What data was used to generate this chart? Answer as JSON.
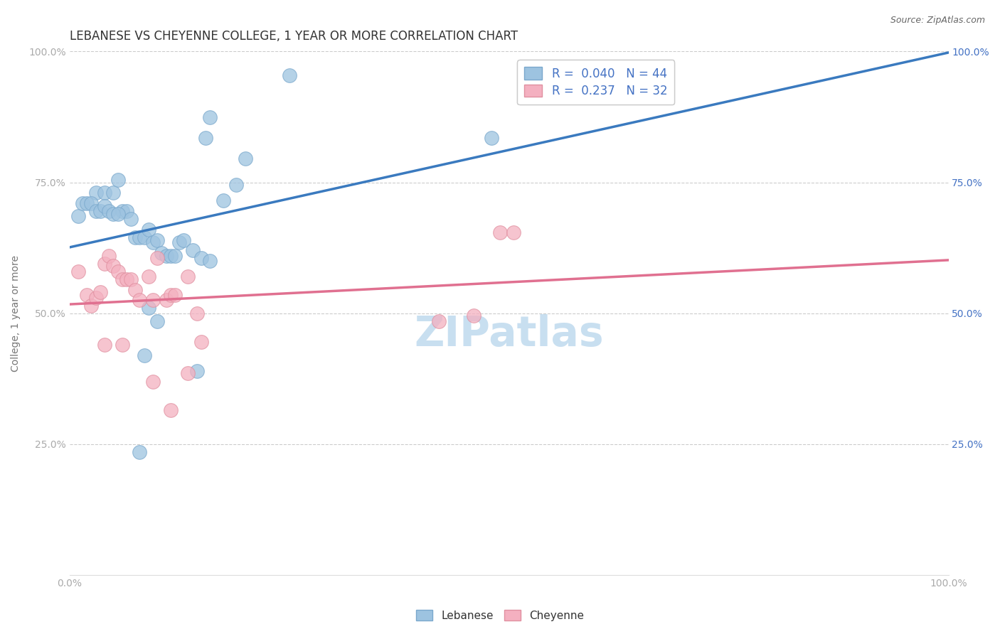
{
  "title": "LEBANESE VS CHEYENNE COLLEGE, 1 YEAR OR MORE CORRELATION CHART",
  "source_text": "Source: ZipAtlas.com",
  "ylabel": "College, 1 year or more",
  "xlim": [
    0.0,
    1.0
  ],
  "ylim": [
    0.0,
    1.0
  ],
  "ytick_positions": [
    0.25,
    0.5,
    0.75,
    1.0
  ],
  "ytick_labels": [
    "25.0%",
    "50.0%",
    "75.0%",
    "100.0%"
  ],
  "right_ytick_color": "#4472c4",
  "left_ytick_color": "#aaaaaa",
  "xtick_color": "#aaaaaa",
  "watermark": "ZIPatlas",
  "watermark_color": "#c8dff0",
  "background_color": "#ffffff",
  "grid_color": "#cccccc",
  "blue_line_color": "#3a7abf",
  "pink_line_color": "#e07090",
  "blue_scatter_color": "#9dc3e0",
  "pink_scatter_color": "#f4b0c0",
  "blue_scatter_edge": "#7aa8cc",
  "pink_scatter_edge": "#e090a0",
  "legend_r1": "R =  0.040   N = 44",
  "legend_r2": "R =  0.237   N = 32",
  "legend_label1": "Lebanese",
  "legend_label2": "Cheyenne",
  "title_fontsize": 12,
  "axis_label_fontsize": 10,
  "tick_fontsize": 10,
  "legend_fontsize": 12,
  "watermark_fontsize": 42,
  "blue_points_x": [
    0.25,
    0.03,
    0.04,
    0.05,
    0.055,
    0.06,
    0.065,
    0.07,
    0.075,
    0.08,
    0.085,
    0.09,
    0.095,
    0.1,
    0.105,
    0.11,
    0.115,
    0.12,
    0.125,
    0.13,
    0.14,
    0.15,
    0.16,
    0.01,
    0.015,
    0.02,
    0.025,
    0.03,
    0.035,
    0.04,
    0.045,
    0.05,
    0.055,
    0.09,
    0.1,
    0.19,
    0.2,
    0.175,
    0.16,
    0.155,
    0.48,
    0.085,
    0.08,
    0.145
  ],
  "blue_points_y": [
    0.955,
    0.73,
    0.73,
    0.73,
    0.755,
    0.695,
    0.695,
    0.68,
    0.645,
    0.645,
    0.645,
    0.66,
    0.635,
    0.64,
    0.615,
    0.61,
    0.61,
    0.61,
    0.635,
    0.64,
    0.62,
    0.605,
    0.6,
    0.685,
    0.71,
    0.71,
    0.71,
    0.695,
    0.695,
    0.705,
    0.695,
    0.69,
    0.69,
    0.51,
    0.485,
    0.745,
    0.795,
    0.715,
    0.875,
    0.835,
    0.835,
    0.42,
    0.235,
    0.39
  ],
  "pink_points_x": [
    0.01,
    0.02,
    0.025,
    0.03,
    0.035,
    0.04,
    0.045,
    0.05,
    0.055,
    0.06,
    0.065,
    0.07,
    0.075,
    0.08,
    0.09,
    0.095,
    0.1,
    0.11,
    0.115,
    0.12,
    0.135,
    0.145,
    0.42,
    0.46,
    0.49,
    0.505,
    0.095,
    0.115,
    0.135,
    0.15,
    0.04,
    0.06
  ],
  "pink_points_y": [
    0.58,
    0.535,
    0.515,
    0.53,
    0.54,
    0.595,
    0.61,
    0.59,
    0.58,
    0.565,
    0.565,
    0.565,
    0.545,
    0.525,
    0.57,
    0.525,
    0.605,
    0.525,
    0.535,
    0.535,
    0.57,
    0.5,
    0.485,
    0.495,
    0.655,
    0.655,
    0.37,
    0.315,
    0.385,
    0.445,
    0.44,
    0.44
  ]
}
